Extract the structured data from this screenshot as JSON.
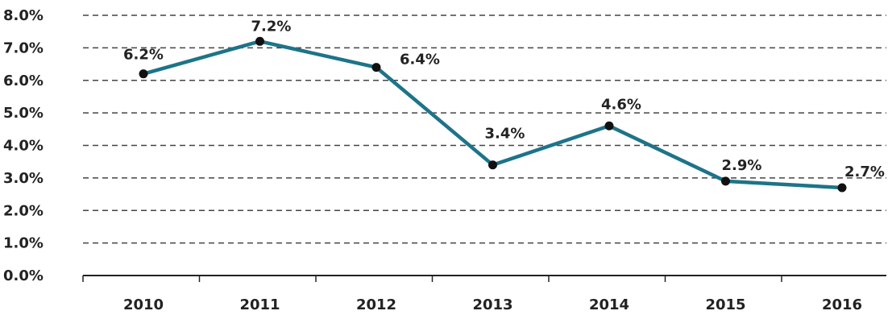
{
  "chart_data": {
    "type": "line",
    "title": "",
    "xlabel": "",
    "ylabel": "",
    "categories": [
      "2010",
      "2011",
      "2012",
      "2013",
      "2014",
      "2015",
      "2016"
    ],
    "series": [
      {
        "values": [
          6.2,
          7.2,
          6.4,
          3.4,
          4.6,
          2.9,
          2.7
        ],
        "data_labels": [
          "6.2%",
          "7.2%",
          "6.4%",
          "3.4%",
          "4.6%",
          "2.9%",
          "2.7%"
        ],
        "color": "#1d7488",
        "marker_color": "#111111"
      }
    ],
    "ylim": [
      0,
      8
    ],
    "yticks": [
      0,
      1,
      2,
      3,
      4,
      5,
      6,
      7,
      8
    ],
    "ytick_labels": [
      "0.0%",
      "1.0%",
      "2.0%",
      "3.0%",
      "4.0%",
      "5.0%",
      "6.0%",
      "7.0%",
      "8.0%"
    ],
    "grid": "horizontal-dashed",
    "gridline_color": "#444444",
    "axis_color": "#222222",
    "legend": "none"
  }
}
